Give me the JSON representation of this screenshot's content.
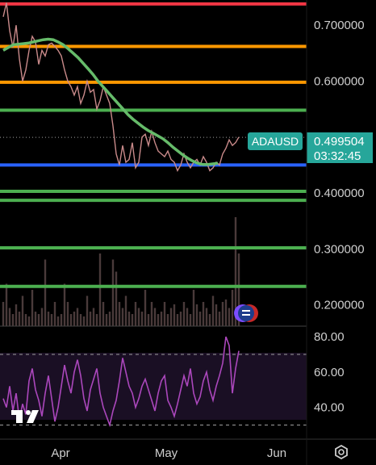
{
  "chart_data": {
    "type": "line",
    "symbol": "ADAUSD",
    "last_price": "0.499504",
    "countdown": "03:32:45",
    "price_axis": {
      "ticks": [
        "0.700000",
        "0.600000",
        "0.400000",
        "0.300000",
        "0.200000"
      ],
      "tick_values": [
        0.7,
        0.6,
        0.4,
        0.3,
        0.2
      ],
      "ylim": [
        0.162,
        0.745
      ]
    },
    "time_axis": {
      "labels": [
        "Apr",
        "May",
        "Jun"
      ]
    },
    "horizontal_levels": [
      {
        "value": 0.738,
        "color": "#f23645"
      },
      {
        "value": 0.662,
        "color": "#ff9800"
      },
      {
        "value": 0.598,
        "color": "#ff9800"
      },
      {
        "value": 0.548,
        "color": "#4caf50"
      },
      {
        "value": 0.45,
        "color": "#2962ff"
      },
      {
        "value": 0.403,
        "color": "#4caf50"
      },
      {
        "value": 0.387,
        "color": "#4caf50"
      },
      {
        "value": 0.302,
        "color": "#4caf50"
      },
      {
        "value": 0.233,
        "color": "#4caf50"
      }
    ],
    "price_series": [
      0.715,
      0.74,
      0.69,
      0.66,
      0.7,
      0.64,
      0.6,
      0.62,
      0.655,
      0.68,
      0.67,
      0.63,
      0.655,
      0.645,
      0.665,
      0.668,
      0.662,
      0.655,
      0.645,
      0.62,
      0.6,
      0.59,
      0.575,
      0.59,
      0.56,
      0.575,
      0.6,
      0.58,
      0.585,
      0.55,
      0.565,
      0.59,
      0.575,
      0.56,
      0.52,
      0.47,
      0.45,
      0.485,
      0.455,
      0.46,
      0.49,
      0.445,
      0.455,
      0.5,
      0.505,
      0.485,
      0.51,
      0.49,
      0.475,
      0.47,
      0.465,
      0.475,
      0.46,
      0.455,
      0.44,
      0.45,
      0.47,
      0.455,
      0.445,
      0.455,
      0.46,
      0.45,
      0.465,
      0.455,
      0.44,
      0.445,
      0.455,
      0.45,
      0.47,
      0.48,
      0.495,
      0.485,
      0.49,
      0.5
    ],
    "moving_average": [
      0.655,
      0.66,
      0.665,
      0.666,
      0.667,
      0.668,
      0.67,
      0.672,
      0.674,
      0.675,
      0.674,
      0.67,
      0.665,
      0.658,
      0.65,
      0.642,
      0.632,
      0.622,
      0.612,
      0.6,
      0.59,
      0.58,
      0.57,
      0.56,
      0.55,
      0.54,
      0.532,
      0.525,
      0.518,
      0.512,
      0.507,
      0.502,
      0.497,
      0.49,
      0.482,
      0.475,
      0.468,
      0.462,
      0.457,
      0.453,
      0.451,
      0.451,
      0.452,
      0.453
    ],
    "volume": [
      0.2,
      0.35,
      0.15,
      0.1,
      0.18,
      0.12,
      0.25,
      0.1,
      0.08,
      0.3,
      0.12,
      0.1,
      0.15,
      0.55,
      0.12,
      0.1,
      0.2,
      0.08,
      0.1,
      0.35,
      0.2,
      0.1,
      0.12,
      0.15,
      0.1,
      0.08,
      0.25,
      0.12,
      0.15,
      0.1,
      0.6,
      0.2,
      0.1,
      0.12,
      0.55,
      0.45,
      0.2,
      0.15,
      0.25,
      0.12,
      0.1,
      0.2,
      0.15,
      0.12,
      0.3,
      0.1,
      0.2,
      0.15,
      0.1,
      0.12,
      0.2,
      0.1,
      0.15,
      0.18,
      0.1,
      0.12,
      0.2,
      0.15,
      0.1,
      0.3,
      0.18,
      0.12,
      0.2,
      0.15,
      0.1,
      0.25,
      0.18,
      0.12,
      0.2,
      0.22,
      0.15,
      0.3,
      0.9,
      0.6
    ],
    "rsi": {
      "ticks": [
        "80.00",
        "60.00",
        "40.00"
      ],
      "tick_values": [
        80,
        60,
        40
      ],
      "overbought": 70,
      "oversold": 30,
      "ylim": [
        22,
        86
      ],
      "values": [
        45,
        40,
        52,
        38,
        48,
        33,
        42,
        36,
        55,
        62,
        50,
        44,
        35,
        48,
        58,
        45,
        32,
        40,
        52,
        64,
        55,
        48,
        60,
        67,
        58,
        45,
        38,
        50,
        56,
        62,
        48,
        40,
        35,
        30,
        38,
        44,
        55,
        68,
        60,
        52,
        48,
        40,
        45,
        52,
        56,
        50,
        44,
        38,
        48,
        55,
        58,
        44,
        40,
        35,
        42,
        50,
        58,
        52,
        62,
        48,
        42,
        46,
        55,
        60,
        50,
        44,
        52,
        58,
        65,
        80,
        75,
        48,
        62,
        72
      ]
    }
  }
}
